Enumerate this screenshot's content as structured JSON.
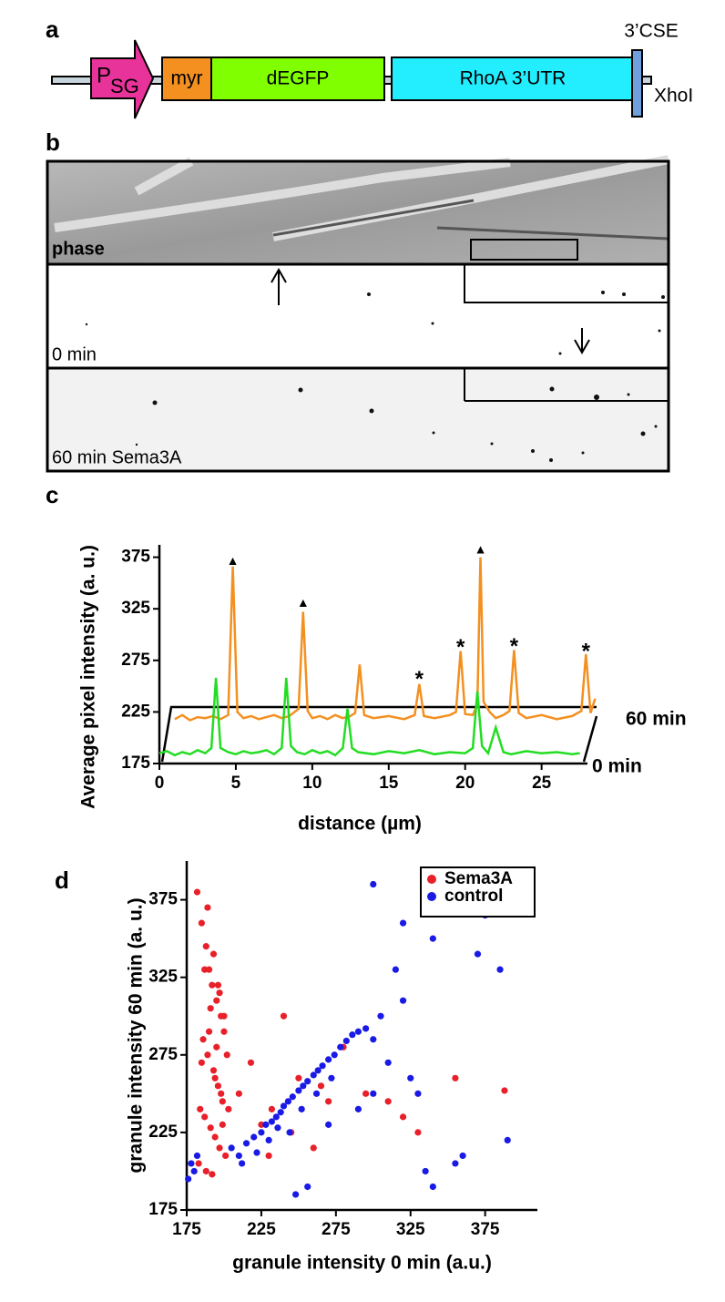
{
  "panel_labels": [
    "a",
    "b",
    "c",
    "d"
  ],
  "construct": {
    "promoter": "P",
    "promoter_sub": "SG",
    "segments": [
      "myr",
      "dEGFP",
      "RhoA 3’UTR"
    ],
    "element": "3’CSE",
    "site": "XhoI"
  },
  "images": {
    "labels": [
      "phase",
      "0 min",
      "60 min Sema3A"
    ]
  },
  "chart_data": [
    {
      "type": "line",
      "xlabel": "distance (µm)",
      "ylabel": "Average pixel intensity (a. u.)",
      "xlim": [
        0,
        28
      ],
      "ylim": [
        175,
        387
      ],
      "xticks": [
        0,
        5,
        10,
        15,
        20,
        25
      ],
      "yticks": [
        175,
        225,
        275,
        325,
        375
      ],
      "series": [
        {
          "name": "60 min",
          "color": "#f39020",
          "x": [
            1,
            1.5,
            2,
            2.5,
            3,
            3.5,
            4,
            4.5,
            4.8,
            5.1,
            5.5,
            6,
            6.5,
            7,
            7.5,
            8,
            8.5,
            9.1,
            9.4,
            9.7,
            10,
            10.5,
            11,
            11.5,
            12,
            12.5,
            12.8,
            13.1,
            13.4,
            14,
            15,
            16,
            16.7,
            17.0,
            17.3,
            18,
            19,
            19.4,
            19.7,
            20.0,
            20.5,
            20.8,
            21.0,
            21.2,
            21.6,
            22,
            22.5,
            22.9,
            23.2,
            23.5,
            24,
            25,
            26,
            27,
            27.6,
            27.9,
            28.2,
            28.5
          ],
          "values": [
            218,
            222,
            217,
            220,
            219,
            221,
            218,
            222,
            366,
            225,
            219,
            221,
            218,
            220,
            222,
            219,
            221,
            228,
            322,
            226,
            219,
            221,
            218,
            222,
            219,
            221,
            224,
            271,
            222,
            219,
            221,
            218,
            222,
            252,
            221,
            219,
            222,
            225,
            284,
            223,
            222,
            232,
            375,
            235,
            225,
            219,
            222,
            226,
            285,
            224,
            219,
            222,
            218,
            221,
            226,
            281,
            224,
            238
          ]
        },
        {
          "name": "0 min",
          "color": "#22dd22",
          "x": [
            0,
            0.5,
            1,
            1.5,
            2,
            2.5,
            3,
            3.4,
            3.7,
            4.0,
            4.5,
            5,
            5.5,
            6,
            6.5,
            7,
            7.5,
            8.0,
            8.3,
            8.6,
            9,
            9.5,
            10,
            10.5,
            11,
            11.5,
            12.0,
            12.3,
            12.6,
            13,
            14,
            15,
            16,
            17,
            18,
            19,
            20,
            20.5,
            20.8,
            21.1,
            21.5,
            22.0,
            22.5,
            23,
            24,
            25,
            26,
            27,
            27.5
          ],
          "values": [
            185,
            187,
            183,
            186,
            184,
            188,
            185,
            190,
            258,
            190,
            186,
            184,
            187,
            185,
            186,
            188,
            184,
            190,
            258,
            192,
            186,
            184,
            188,
            185,
            187,
            183,
            190,
            228,
            190,
            186,
            184,
            187,
            185,
            188,
            184,
            186,
            185,
            190,
            245,
            192,
            185,
            210,
            186,
            184,
            187,
            185,
            186,
            184,
            185
          ]
        }
      ],
      "annotations": [
        {
          "x": 4.8,
          "y": 371,
          "text": "▲"
        },
        {
          "x": 9.4,
          "y": 330,
          "text": "▲"
        },
        {
          "x": 21,
          "y": 382,
          "text": "▲"
        },
        {
          "x": 17,
          "y": 261,
          "text": "*"
        },
        {
          "x": 19.7,
          "y": 292,
          "text": "*"
        },
        {
          "x": 23.2,
          "y": 293,
          "text": "*"
        },
        {
          "x": 27.9,
          "y": 288,
          "text": "*"
        }
      ]
    },
    {
      "type": "scatter",
      "xlabel": "granule intensity 0 min (a.u.)",
      "ylabel": "granule intensity 60 min (a. u.)",
      "xlim": [
        175,
        410
      ],
      "ylim": [
        175,
        400
      ],
      "xticks": [
        175,
        225,
        275,
        325,
        375
      ],
      "yticks": [
        175,
        225,
        275,
        325,
        375
      ],
      "legend": "top-right",
      "series": [
        {
          "name": "Sema3A",
          "color": "#e8202a",
          "x": [
            182,
            185,
            188,
            190,
            192,
            195,
            198,
            200,
            186,
            189,
            193,
            196,
            199,
            184,
            187,
            191,
            194,
            197,
            201,
            183,
            188,
            192,
            196,
            200,
            185,
            190,
            194,
            198,
            203,
            187,
            191,
            195,
            199,
            189,
            193,
            197,
            202,
            210,
            218,
            225,
            232,
            240,
            250,
            260,
            270,
            280,
            295,
            310,
            320,
            330,
            355,
            388,
            230,
            245,
            265
          ],
          "values": [
            380,
            360,
            345,
            330,
            320,
            310,
            300,
            290,
            285,
            275,
            265,
            255,
            245,
            240,
            235,
            228,
            222,
            215,
            210,
            205,
            200,
            198,
            320,
            300,
            270,
            290,
            260,
            250,
            240,
            330,
            305,
            280,
            230,
            370,
            340,
            315,
            275,
            250,
            270,
            230,
            240,
            300,
            260,
            215,
            245,
            280,
            250,
            245,
            235,
            225,
            260,
            252,
            210,
            225,
            255
          ]
        },
        {
          "name": "control",
          "color": "#1a1ae6",
          "x": [
            176,
            178,
            180,
            182,
            205,
            210,
            215,
            220,
            225,
            228,
            232,
            235,
            238,
            240,
            243,
            246,
            250,
            253,
            256,
            260,
            263,
            266,
            270,
            274,
            278,
            282,
            286,
            290,
            295,
            300,
            305,
            212,
            222,
            230,
            236,
            244,
            252,
            262,
            272,
            248,
            256,
            270,
            290,
            300,
            310,
            315,
            320,
            325,
            330,
            335,
            340,
            355,
            360,
            370,
            375,
            385,
            390,
            300,
            320,
            340
          ],
          "values": [
            195,
            205,
            200,
            210,
            215,
            210,
            218,
            222,
            225,
            230,
            232,
            235,
            238,
            242,
            245,
            248,
            252,
            255,
            258,
            262,
            265,
            268,
            272,
            275,
            280,
            284,
            288,
            290,
            292,
            285,
            300,
            205,
            212,
            220,
            228,
            225,
            240,
            250,
            260,
            185,
            190,
            230,
            240,
            250,
            270,
            330,
            310,
            260,
            250,
            200,
            190,
            205,
            210,
            340,
            365,
            330,
            220,
            385,
            360,
            350
          ]
        }
      ]
    }
  ]
}
